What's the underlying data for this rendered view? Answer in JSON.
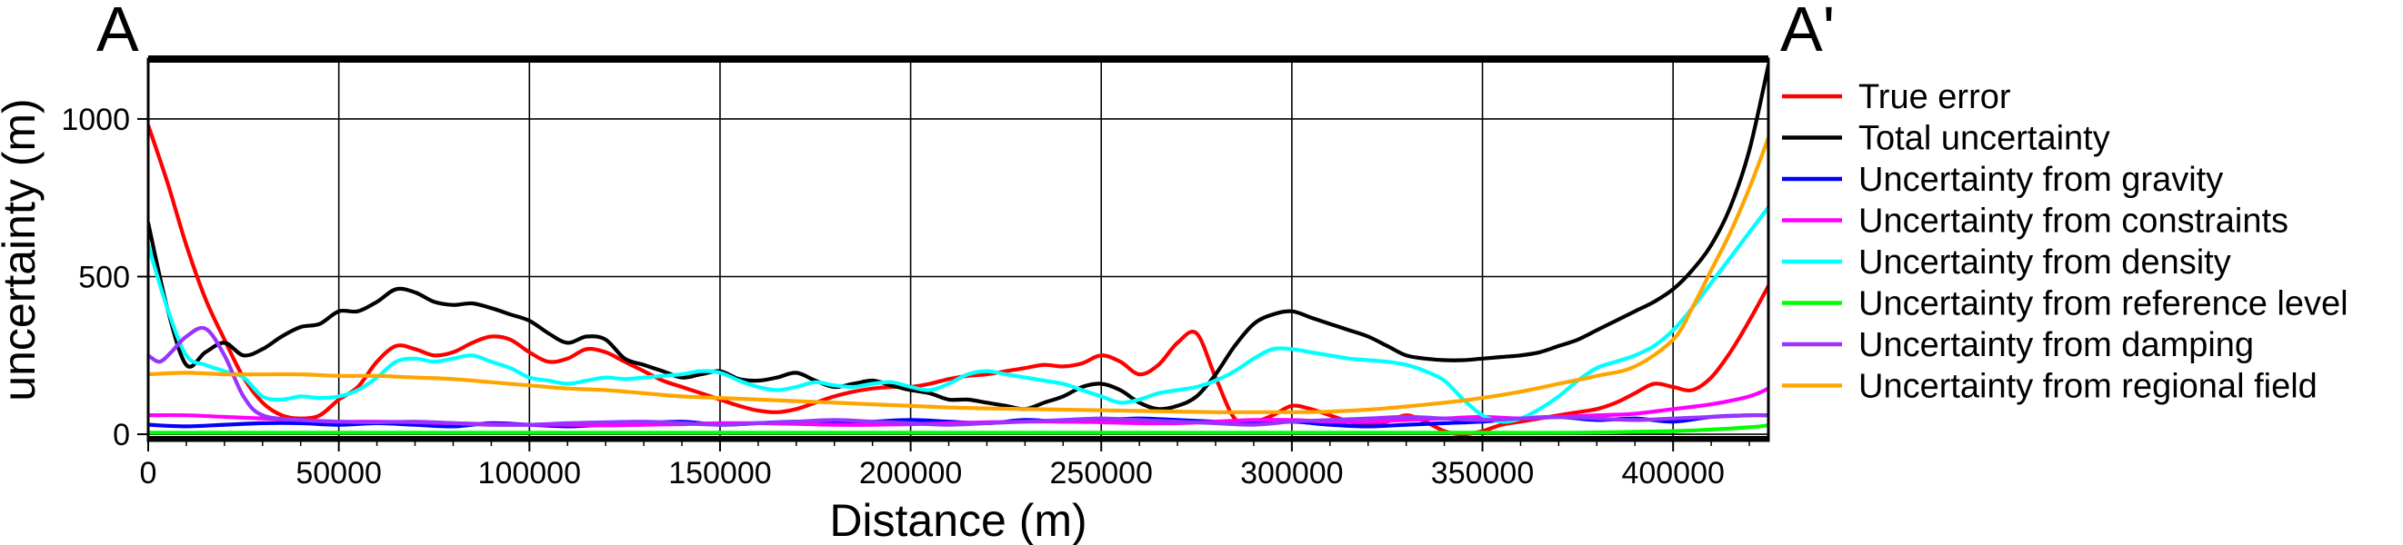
{
  "chart_data": {
    "type": "line",
    "title": "",
    "corner_labels": {
      "left": "A",
      "right": "A'"
    },
    "xlabel": "Distance (m)",
    "ylabel": "uncertainty (m)",
    "xlim": [
      0,
      425000
    ],
    "ylim": [
      -20,
      1190
    ],
    "xticks": [
      0,
      50000,
      100000,
      150000,
      200000,
      250000,
      300000,
      350000,
      400000
    ],
    "xtick_labels": [
      "0",
      "50000",
      "100000",
      "150000",
      "200000",
      "250000",
      "300000",
      "350000",
      "400000"
    ],
    "yticks": [
      0,
      500,
      1000
    ],
    "ytick_labels": [
      "0",
      "500",
      "1000"
    ],
    "grid": true,
    "legend_position": "right",
    "series": [
      {
        "name": "True error",
        "color": "#ff0000",
        "x": [
          0,
          5000,
          10000,
          15000,
          20000,
          25000,
          30000,
          35000,
          40000,
          45000,
          50000,
          55000,
          60000,
          65000,
          70000,
          75000,
          80000,
          85000,
          90000,
          95000,
          100000,
          105000,
          110000,
          115000,
          120000,
          125000,
          130000,
          135000,
          140000,
          145000,
          150000,
          155000,
          160000,
          165000,
          170000,
          175000,
          180000,
          185000,
          190000,
          195000,
          200000,
          205000,
          210000,
          215000,
          220000,
          225000,
          230000,
          235000,
          240000,
          245000,
          250000,
          255000,
          260000,
          265000,
          270000,
          275000,
          280000,
          285000,
          290000,
          295000,
          300000,
          305000,
          310000,
          315000,
          320000,
          325000,
          330000,
          335000,
          340000,
          345000,
          350000,
          355000,
          360000,
          365000,
          370000,
          375000,
          380000,
          385000,
          390000,
          395000,
          400000,
          405000,
          410000,
          415000,
          420000,
          425000
        ],
        "y": [
          980,
          800,
          600,
          430,
          300,
          180,
          100,
          60,
          50,
          60,
          110,
          150,
          230,
          280,
          270,
          250,
          260,
          290,
          310,
          300,
          260,
          230,
          240,
          270,
          260,
          230,
          200,
          170,
          150,
          130,
          110,
          90,
          75,
          70,
          80,
          100,
          120,
          135,
          145,
          150,
          150,
          160,
          175,
          185,
          190,
          200,
          210,
          220,
          215,
          225,
          250,
          230,
          190,
          220,
          290,
          320,
          180,
          50,
          40,
          60,
          90,
          80,
          60,
          40,
          30,
          40,
          60,
          40,
          10,
          0,
          10,
          30,
          40,
          50,
          60,
          70,
          80,
          100,
          130,
          160,
          150,
          140,
          180,
          260,
          360,
          470
        ]
      },
      {
        "name": "Total uncertainty",
        "color": "#000000",
        "x": [
          0,
          5000,
          10000,
          15000,
          20000,
          25000,
          30000,
          35000,
          40000,
          45000,
          50000,
          55000,
          60000,
          65000,
          70000,
          75000,
          80000,
          85000,
          90000,
          95000,
          100000,
          105000,
          110000,
          115000,
          120000,
          125000,
          130000,
          135000,
          140000,
          145000,
          150000,
          155000,
          160000,
          165000,
          170000,
          175000,
          180000,
          185000,
          190000,
          195000,
          200000,
          205000,
          210000,
          215000,
          220000,
          225000,
          230000,
          235000,
          240000,
          245000,
          250000,
          255000,
          260000,
          265000,
          270000,
          275000,
          280000,
          285000,
          290000,
          295000,
          300000,
          305000,
          310000,
          315000,
          320000,
          325000,
          330000,
          335000,
          340000,
          345000,
          350000,
          355000,
          360000,
          365000,
          370000,
          375000,
          380000,
          385000,
          390000,
          395000,
          400000,
          405000,
          410000,
          415000,
          420000,
          425000
        ],
        "y": [
          670,
          400,
          220,
          260,
          290,
          250,
          270,
          310,
          340,
          350,
          390,
          390,
          420,
          460,
          450,
          420,
          410,
          415,
          400,
          380,
          360,
          320,
          290,
          310,
          300,
          240,
          220,
          200,
          180,
          190,
          200,
          175,
          170,
          180,
          195,
          170,
          150,
          160,
          170,
          155,
          140,
          130,
          110,
          110,
          100,
          90,
          80,
          100,
          120,
          150,
          160,
          140,
          100,
          80,
          90,
          120,
          190,
          280,
          350,
          380,
          390,
          370,
          350,
          330,
          310,
          280,
          250,
          240,
          235,
          235,
          240,
          245,
          250,
          260,
          280,
          300,
          330,
          360,
          390,
          420,
          460,
          520,
          600,
          720,
          900,
          1170
        ]
      },
      {
        "name": "Uncertainty from gravity",
        "color": "#0000ff",
        "x": [
          0,
          10000,
          20000,
          30000,
          40000,
          50000,
          60000,
          70000,
          80000,
          90000,
          100000,
          110000,
          120000,
          130000,
          140000,
          150000,
          160000,
          170000,
          180000,
          190000,
          200000,
          210000,
          220000,
          230000,
          240000,
          250000,
          260000,
          270000,
          280000,
          290000,
          300000,
          310000,
          320000,
          330000,
          340000,
          350000,
          360000,
          370000,
          380000,
          390000,
          400000,
          410000,
          420000,
          425000
        ],
        "y": [
          30,
          25,
          30,
          35,
          35,
          30,
          35,
          30,
          25,
          35,
          30,
          25,
          30,
          35,
          40,
          30,
          35,
          40,
          35,
          40,
          45,
          40,
          35,
          45,
          40,
          45,
          50,
          45,
          40,
          35,
          40,
          30,
          25,
          30,
          35,
          40,
          50,
          55,
          45,
          50,
          40,
          55,
          60,
          60
        ]
      },
      {
        "name": "Uncertainty from constraints",
        "color": "#ff00ff",
        "x": [
          0,
          10000,
          20000,
          30000,
          40000,
          50000,
          60000,
          70000,
          80000,
          90000,
          100000,
          110000,
          120000,
          130000,
          140000,
          150000,
          160000,
          170000,
          180000,
          190000,
          200000,
          210000,
          220000,
          230000,
          240000,
          250000,
          260000,
          270000,
          280000,
          290000,
          300000,
          310000,
          320000,
          330000,
          340000,
          350000,
          360000,
          370000,
          380000,
          390000,
          400000,
          410000,
          420000,
          425000
        ],
        "y": [
          60,
          60,
          55,
          50,
          45,
          40,
          40,
          38,
          35,
          32,
          30,
          30,
          28,
          30,
          32,
          35,
          35,
          33,
          30,
          30,
          32,
          35,
          38,
          40,
          40,
          38,
          35,
          35,
          40,
          45,
          45,
          40,
          40,
          45,
          50,
          55,
          50,
          55,
          60,
          65,
          80,
          95,
          120,
          145
        ]
      },
      {
        "name": "Uncertainty from density",
        "color": "#00ffff",
        "x": [
          0,
          5000,
          10000,
          15000,
          20000,
          25000,
          30000,
          35000,
          40000,
          45000,
          50000,
          55000,
          60000,
          65000,
          70000,
          75000,
          80000,
          85000,
          90000,
          95000,
          100000,
          105000,
          110000,
          115000,
          120000,
          125000,
          130000,
          135000,
          140000,
          145000,
          150000,
          155000,
          160000,
          165000,
          170000,
          175000,
          180000,
          185000,
          190000,
          195000,
          200000,
          205000,
          210000,
          215000,
          220000,
          225000,
          230000,
          235000,
          240000,
          245000,
          250000,
          255000,
          260000,
          265000,
          270000,
          275000,
          280000,
          285000,
          290000,
          295000,
          300000,
          305000,
          310000,
          315000,
          320000,
          325000,
          330000,
          335000,
          340000,
          345000,
          350000,
          355000,
          360000,
          365000,
          370000,
          375000,
          380000,
          385000,
          390000,
          395000,
          400000,
          405000,
          410000,
          415000,
          420000,
          425000
        ],
        "y": [
          600,
          400,
          250,
          220,
          200,
          180,
          120,
          110,
          120,
          115,
          120,
          140,
          180,
          230,
          240,
          230,
          240,
          250,
          230,
          210,
          180,
          170,
          160,
          170,
          180,
          175,
          180,
          185,
          190,
          200,
          195,
          170,
          150,
          140,
          150,
          165,
          155,
          150,
          160,
          165,
          150,
          140,
          160,
          190,
          200,
          190,
          180,
          170,
          160,
          140,
          120,
          100,
          110,
          130,
          140,
          150,
          170,
          200,
          240,
          270,
          270,
          260,
          250,
          240,
          235,
          230,
          220,
          200,
          170,
          110,
          60,
          40,
          50,
          80,
          120,
          170,
          210,
          230,
          250,
          280,
          330,
          400,
          480,
          560,
          640,
          720
        ]
      },
      {
        "name": "Uncertainty from reference level",
        "color": "#00ff00",
        "x": [
          0,
          25000,
          50000,
          75000,
          100000,
          125000,
          150000,
          175000,
          200000,
          225000,
          250000,
          275000,
          300000,
          325000,
          350000,
          375000,
          400000,
          410000,
          420000,
          425000
        ],
        "y": [
          5,
          5,
          5,
          5,
          5,
          5,
          5,
          5,
          5,
          5,
          5,
          5,
          5,
          5,
          5,
          5,
          10,
          15,
          22,
          28
        ]
      },
      {
        "name": "Uncertainty from damping",
        "color": "#9933ff",
        "x": [
          0,
          3000,
          6000,
          10000,
          15000,
          20000,
          25000,
          30000,
          40000,
          50000,
          60000,
          70000,
          80000,
          90000,
          100000,
          110000,
          120000,
          130000,
          140000,
          150000,
          160000,
          170000,
          180000,
          190000,
          200000,
          210000,
          220000,
          230000,
          240000,
          250000,
          260000,
          270000,
          280000,
          290000,
          300000,
          310000,
          320000,
          330000,
          340000,
          350000,
          360000,
          370000,
          380000,
          390000,
          400000,
          410000,
          420000,
          425000
        ],
        "y": [
          250,
          230,
          260,
          310,
          335,
          250,
          120,
          60,
          45,
          40,
          38,
          40,
          35,
          30,
          30,
          35,
          38,
          40,
          35,
          30,
          35,
          40,
          45,
          40,
          35,
          30,
          35,
          40,
          45,
          50,
          45,
          40,
          35,
          30,
          40,
          45,
          50,
          55,
          50,
          45,
          50,
          55,
          50,
          45,
          50,
          55,
          60,
          60
        ]
      },
      {
        "name": "Uncertainty from regional field",
        "color": "#ffa500",
        "x": [
          0,
          10000,
          20000,
          30000,
          40000,
          50000,
          60000,
          70000,
          80000,
          90000,
          100000,
          110000,
          120000,
          130000,
          140000,
          150000,
          160000,
          170000,
          180000,
          190000,
          200000,
          210000,
          220000,
          230000,
          240000,
          250000,
          260000,
          270000,
          280000,
          290000,
          300000,
          310000,
          320000,
          330000,
          340000,
          350000,
          360000,
          370000,
          380000,
          390000,
          400000,
          405000,
          410000,
          415000,
          420000,
          425000
        ],
        "y": [
          190,
          195,
          190,
          190,
          190,
          185,
          185,
          180,
          175,
          165,
          155,
          145,
          140,
          130,
          120,
          115,
          110,
          105,
          100,
          95,
          90,
          85,
          82,
          80,
          78,
          76,
          74,
          72,
          70,
          70,
          70,
          72,
          78,
          88,
          100,
          115,
          135,
          160,
          185,
          215,
          300,
          400,
          520,
          640,
          780,
          940
        ]
      }
    ]
  }
}
